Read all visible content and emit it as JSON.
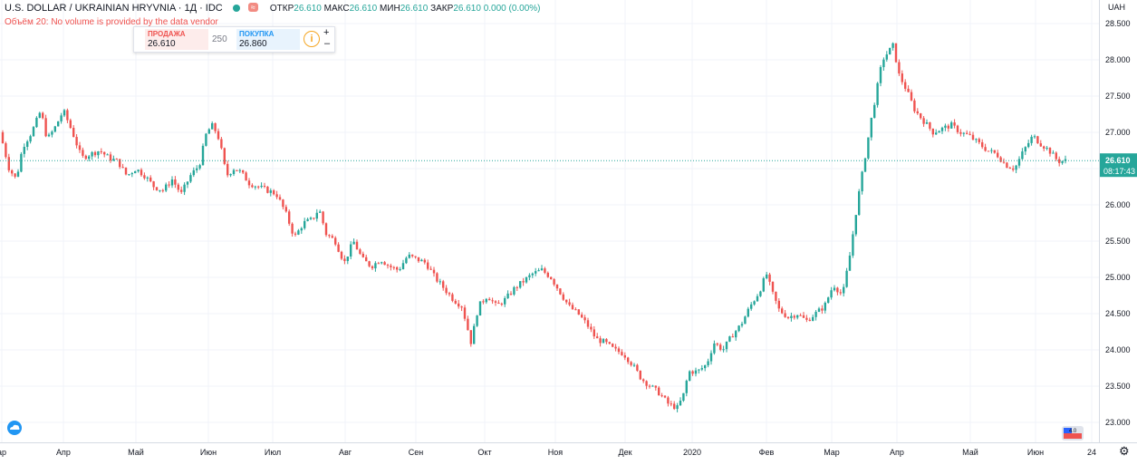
{
  "legend": {
    "symbol": "U.S. DOLLAR / UKRAINIAN HRYVNIA · 1Д · IDC",
    "badge": "≈",
    "open_label": "ОТКР",
    "open": "26.610",
    "high_label": "МАКС",
    "high": "26.610",
    "low_label": "МИН",
    "low": "26.610",
    "close_label": "ЗАКР",
    "close": "26.610",
    "change": "0.000 (0.00%)",
    "volume_note": "Объём 20: No volume is provided by the data vendor"
  },
  "trade_widget": {
    "sell_label": "ПРОДАЖА",
    "sell_price": "26.610",
    "quantity": "250",
    "buy_label": "ПОКУПКА",
    "buy_price": "26.860",
    "info_glyph": "i",
    "plus": "+",
    "minus": "–"
  },
  "price_scale": {
    "currency": "UAH",
    "last_price": "26.610",
    "countdown": "08:17:43"
  },
  "colors": {
    "up": "#26a69a",
    "down": "#ef5350",
    "grid": "#f0f3fa",
    "last_line": "#26a69a"
  },
  "icons": [
    "cloud-icon",
    "flag-icon",
    "gear-icon"
  ],
  "flag_text": "4.0",
  "chart_data": {
    "type": "candlestick",
    "title": "U.S. DOLLAR / UKRAINIAN HRYVNIA · 1Д · IDC",
    "ylabel": "UAH",
    "ylim": [
      22.8,
      28.6
    ],
    "yticks": [
      "28.500",
      "28.000",
      "27.500",
      "27.000",
      "26.500",
      "26.000",
      "25.500",
      "25.000",
      "24.500",
      "24.000",
      "23.500",
      "23.000"
    ],
    "xticks": [
      "ар",
      "Апр",
      "Май",
      "Июн",
      "Июл",
      "Авг",
      "Сен",
      "Окт",
      "Ноя",
      "Дек",
      "2020",
      "Фев",
      "Мар",
      "Апр",
      "Май",
      "Июн",
      "24"
    ],
    "last_price": 26.61,
    "path": [
      [
        0,
        27.0
      ],
      [
        10,
        26.5
      ],
      [
        18,
        26.35
      ],
      [
        25,
        26.8
      ],
      [
        35,
        27.0
      ],
      [
        45,
        27.3
      ],
      [
        52,
        26.9
      ],
      [
        60,
        27.05
      ],
      [
        70,
        27.3
      ],
      [
        80,
        27.0
      ],
      [
        90,
        26.65
      ],
      [
        100,
        26.7
      ],
      [
        110,
        26.75
      ],
      [
        120,
        26.65
      ],
      [
        130,
        26.6
      ],
      [
        140,
        26.4
      ],
      [
        150,
        26.5
      ],
      [
        160,
        26.4
      ],
      [
        170,
        26.25
      ],
      [
        180,
        26.2
      ],
      [
        190,
        26.35
      ],
      [
        200,
        26.15
      ],
      [
        210,
        26.4
      ],
      [
        220,
        26.55
      ],
      [
        228,
        27.0
      ],
      [
        235,
        27.1
      ],
      [
        242,
        26.9
      ],
      [
        250,
        26.4
      ],
      [
        258,
        26.5
      ],
      [
        266,
        26.45
      ],
      [
        275,
        26.3
      ],
      [
        285,
        26.25
      ],
      [
        295,
        26.2
      ],
      [
        305,
        26.15
      ],
      [
        315,
        25.9
      ],
      [
        325,
        25.55
      ],
      [
        335,
        25.75
      ],
      [
        345,
        25.8
      ],
      [
        352,
        25.95
      ],
      [
        360,
        25.6
      ],
      [
        370,
        25.5
      ],
      [
        380,
        25.2
      ],
      [
        390,
        25.5
      ],
      [
        400,
        25.25
      ],
      [
        410,
        25.15
      ],
      [
        420,
        25.25
      ],
      [
        430,
        25.15
      ],
      [
        440,
        25.1
      ],
      [
        450,
        25.3
      ],
      [
        460,
        25.25
      ],
      [
        470,
        25.2
      ],
      [
        480,
        25.0
      ],
      [
        490,
        24.85
      ],
      [
        500,
        24.7
      ],
      [
        510,
        24.6
      ],
      [
        520,
        24.1
      ],
      [
        528,
        24.6
      ],
      [
        538,
        24.75
      ],
      [
        548,
        24.6
      ],
      [
        558,
        24.7
      ],
      [
        568,
        24.85
      ],
      [
        578,
        24.95
      ],
      [
        588,
        25.05
      ],
      [
        598,
        25.1
      ],
      [
        608,
        25.0
      ],
      [
        618,
        24.8
      ],
      [
        628,
        24.6
      ],
      [
        638,
        24.5
      ],
      [
        648,
        24.35
      ],
      [
        658,
        24.15
      ],
      [
        668,
        24.1
      ],
      [
        678,
        24.0
      ],
      [
        688,
        23.95
      ],
      [
        698,
        23.8
      ],
      [
        708,
        23.6
      ],
      [
        718,
        23.5
      ],
      [
        728,
        23.4
      ],
      [
        738,
        23.25
      ],
      [
        748,
        23.2
      ],
      [
        755,
        23.4
      ],
      [
        760,
        23.7
      ],
      [
        770,
        23.7
      ],
      [
        780,
        23.8
      ],
      [
        788,
        24.1
      ],
      [
        798,
        24.0
      ],
      [
        808,
        24.2
      ],
      [
        818,
        24.35
      ],
      [
        828,
        24.6
      ],
      [
        838,
        24.8
      ],
      [
        846,
        25.05
      ],
      [
        852,
        24.8
      ],
      [
        860,
        24.55
      ],
      [
        870,
        24.45
      ],
      [
        880,
        24.5
      ],
      [
        890,
        24.4
      ],
      [
        900,
        24.5
      ],
      [
        910,
        24.6
      ],
      [
        920,
        24.9
      ],
      [
        930,
        24.75
      ],
      [
        938,
        25.3
      ],
      [
        946,
        26.0
      ],
      [
        954,
        26.6
      ],
      [
        962,
        27.2
      ],
      [
        968,
        27.6
      ],
      [
        974,
        28.0
      ],
      [
        980,
        28.1
      ],
      [
        986,
        28.2
      ],
      [
        992,
        27.8
      ],
      [
        1000,
        27.6
      ],
      [
        1010,
        27.3
      ],
      [
        1020,
        27.15
      ],
      [
        1030,
        27.0
      ],
      [
        1040,
        27.05
      ],
      [
        1050,
        27.1
      ],
      [
        1060,
        27.0
      ],
      [
        1070,
        26.95
      ],
      [
        1080,
        26.85
      ],
      [
        1090,
        26.75
      ],
      [
        1100,
        26.7
      ],
      [
        1110,
        26.55
      ],
      [
        1120,
        26.5
      ],
      [
        1130,
        26.75
      ],
      [
        1140,
        26.95
      ],
      [
        1148,
        26.85
      ],
      [
        1158,
        26.75
      ],
      [
        1168,
        26.6
      ],
      [
        1178,
        26.61
      ]
    ]
  }
}
